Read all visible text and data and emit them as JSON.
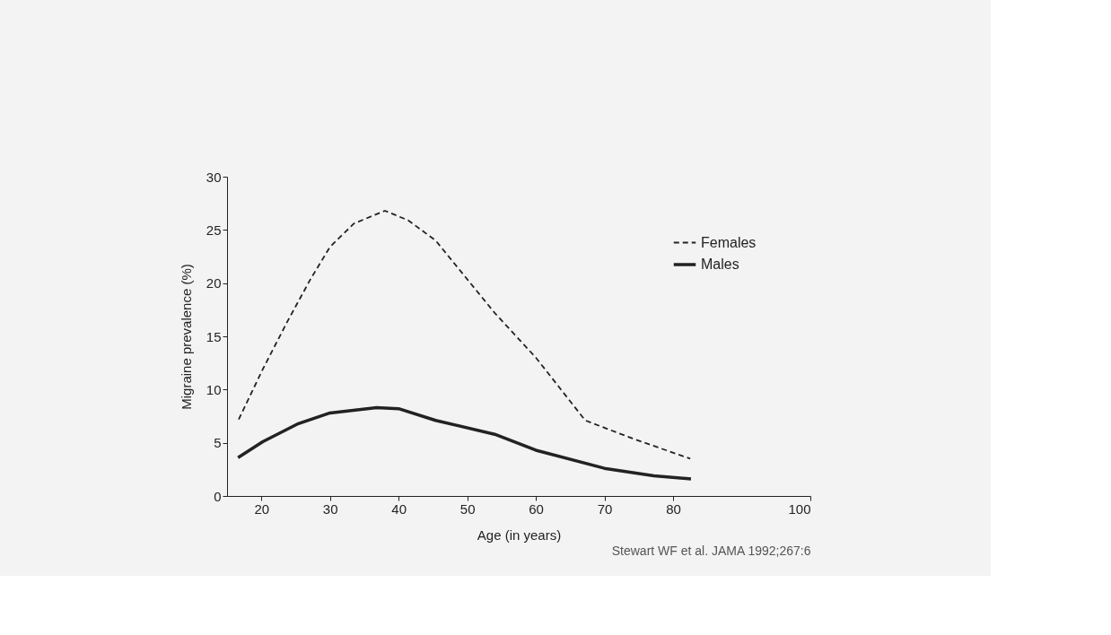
{
  "chart_data": {
    "type": "line",
    "xlabel": "Age (in years)",
    "ylabel": "Migraine prevalence (%)",
    "xlim": [
      15,
      100
    ],
    "xticks": [
      20,
      30,
      40,
      50,
      60,
      70,
      80,
      100
    ],
    "ylim": [
      0,
      30
    ],
    "yticks": [
      0,
      5,
      10,
      15,
      20,
      25,
      30
    ],
    "series": [
      {
        "name": "Females",
        "color": "#222222",
        "line_style": "dashed",
        "x": [
          16.7,
          20.2,
          23.8,
          27.1,
          30,
          33.5,
          38,
          41.4,
          45.4,
          54,
          60,
          67.2,
          74.1,
          82.5
        ],
        "values": [
          7.2,
          11.9,
          16.4,
          20.3,
          23.4,
          25.6,
          26.8,
          25.9,
          24.0,
          17.2,
          13.0,
          7.1,
          5.4,
          3.5
        ]
      },
      {
        "name": "Males",
        "color": "#222222",
        "line_style": "solid",
        "x": [
          16.6,
          20.2,
          25.4,
          30,
          36.8,
          40,
          45.4,
          54,
          60,
          70,
          77.2,
          82.6
        ],
        "values": [
          3.6,
          5.1,
          6.8,
          7.8,
          8.3,
          8.2,
          7.1,
          5.8,
          4.3,
          2.6,
          1.9,
          1.6
        ]
      }
    ],
    "legend": "top right",
    "grid": false,
    "annotations": [
      "Stewart WF et al. JAMA 1992;267:6"
    ]
  }
}
